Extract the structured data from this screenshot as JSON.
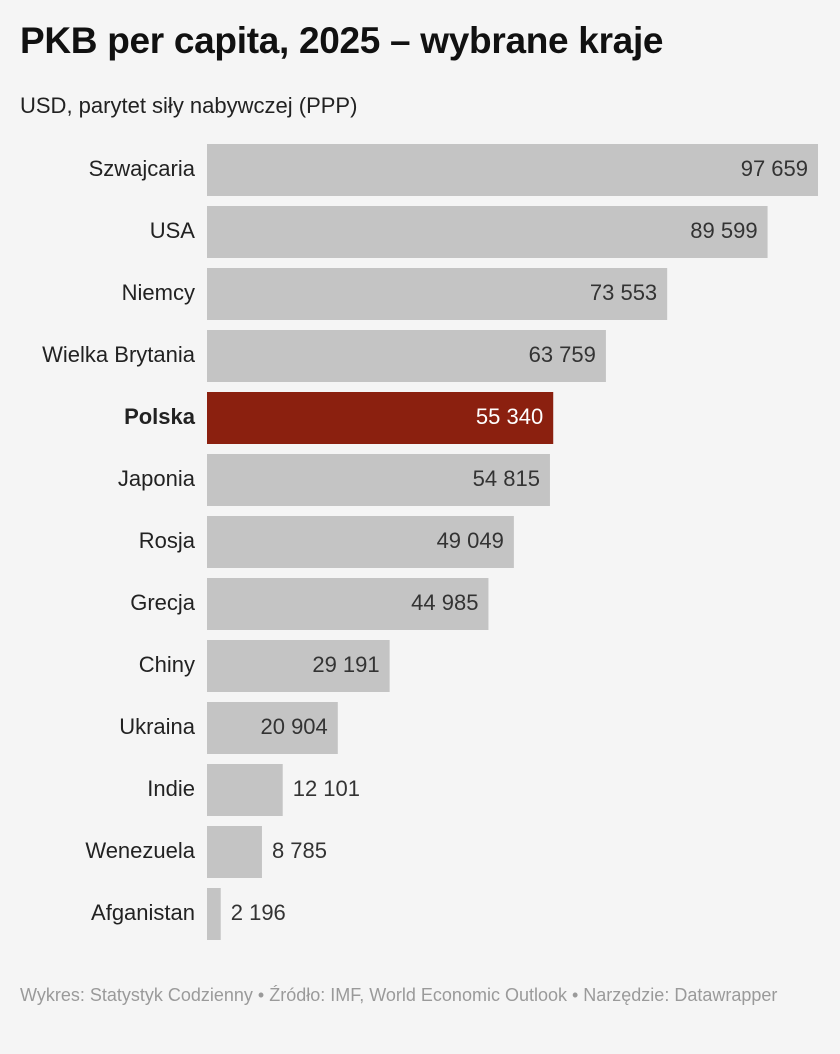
{
  "chart_data": {
    "type": "bar",
    "title": "PKB per capita, 2025 – wybrane kraje",
    "subtitle": "USD, parytet siły nabywczej (PPP)",
    "categories": [
      "Szwajcaria",
      "USA",
      "Niemcy",
      "Wielka Brytania",
      "Polska",
      "Japonia",
      "Rosja",
      "Grecja",
      "Chiny",
      "Ukraina",
      "Indie",
      "Wenezuela",
      "Afganistan"
    ],
    "values": [
      97659,
      89599,
      73553,
      63759,
      55340,
      54815,
      49049,
      44985,
      29191,
      20904,
      12101,
      8785,
      2196
    ],
    "value_labels": [
      "97 659",
      "89 599",
      "73 553",
      "63 759",
      "55 340",
      "54 815",
      "49 049",
      "44 985",
      "29 191",
      "20 904",
      "12 101",
      "8 785",
      "2 196"
    ],
    "colors": [
      "#c4c4c4",
      "#c4c4c4",
      "#c4c4c4",
      "#c4c4c4",
      "#8b200f",
      "#c4c4c4",
      "#c4c4c4",
      "#c4c4c4",
      "#c4c4c4",
      "#c4c4c4",
      "#c4c4c4",
      "#c4c4c4",
      "#c4c4c4"
    ],
    "footer": "Wykres: Statystyk Codzienny • Źródło: IMF, World Economic Outlook • Narzędzie: Datawrapper"
  }
}
